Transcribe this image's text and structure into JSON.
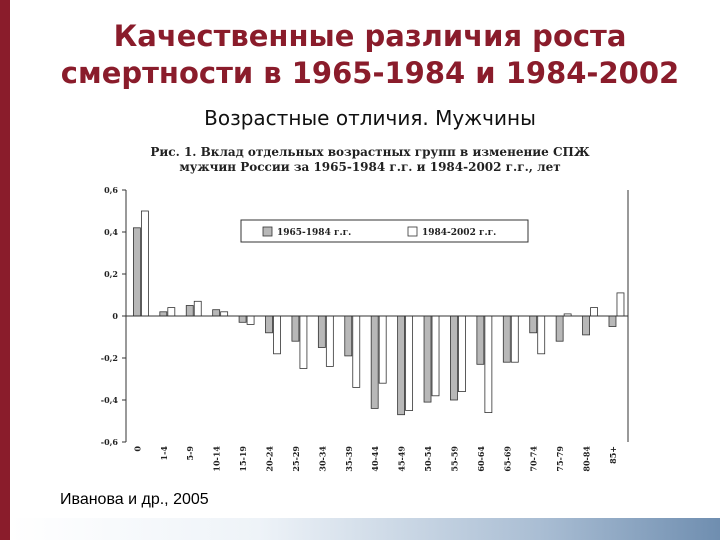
{
  "slide": {
    "title_line1": "Качественные различия роста",
    "title_line2": "смертности в 1965-1984 и 1984-2002",
    "subtitle": "Возрастные отличия. Мужчины",
    "source": "Иванова и др., 2005",
    "accent_color": "#8a1c2b"
  },
  "chart_data": {
    "type": "bar",
    "title_line1": "Рис. 1. Вклад отдельных возрастных групп в изменение СПЖ",
    "title_line2": "мужчин России за 1965-1984 г.г. и 1984-2002 г.г., лет",
    "categories": [
      "0",
      "1-4",
      "5-9",
      "10-14",
      "15-19",
      "20-24",
      "25-29",
      "30-34",
      "35-39",
      "40-44",
      "45-49",
      "50-54",
      "55-59",
      "60-64",
      "65-69",
      "70-74",
      "75-79",
      "80-84",
      "85+"
    ],
    "series": [
      {
        "name": "1965-1984 г.г.",
        "color": "#b8b8b8",
        "values": [
          0.42,
          0.02,
          0.05,
          0.03,
          -0.03,
          -0.08,
          -0.12,
          -0.15,
          -0.19,
          -0.44,
          -0.47,
          -0.41,
          -0.4,
          -0.23,
          -0.22,
          -0.08,
          -0.12,
          -0.09,
          -0.05
        ]
      },
      {
        "name": "1984-2002 г.г.",
        "color": "#ffffff",
        "values": [
          0.5,
          0.04,
          0.07,
          0.02,
          -0.04,
          -0.18,
          -0.25,
          -0.24,
          -0.34,
          -0.32,
          -0.45,
          -0.38,
          -0.36,
          -0.46,
          -0.22,
          -0.18,
          0.01,
          0.04,
          0.11
        ]
      }
    ],
    "ylim": [
      -0.6,
      0.6
    ],
    "yticks": [
      "0,6",
      "0,4",
      "0,2",
      "0",
      "-0,2",
      "-0,4",
      "-0,6"
    ],
    "legend": "top-right"
  }
}
